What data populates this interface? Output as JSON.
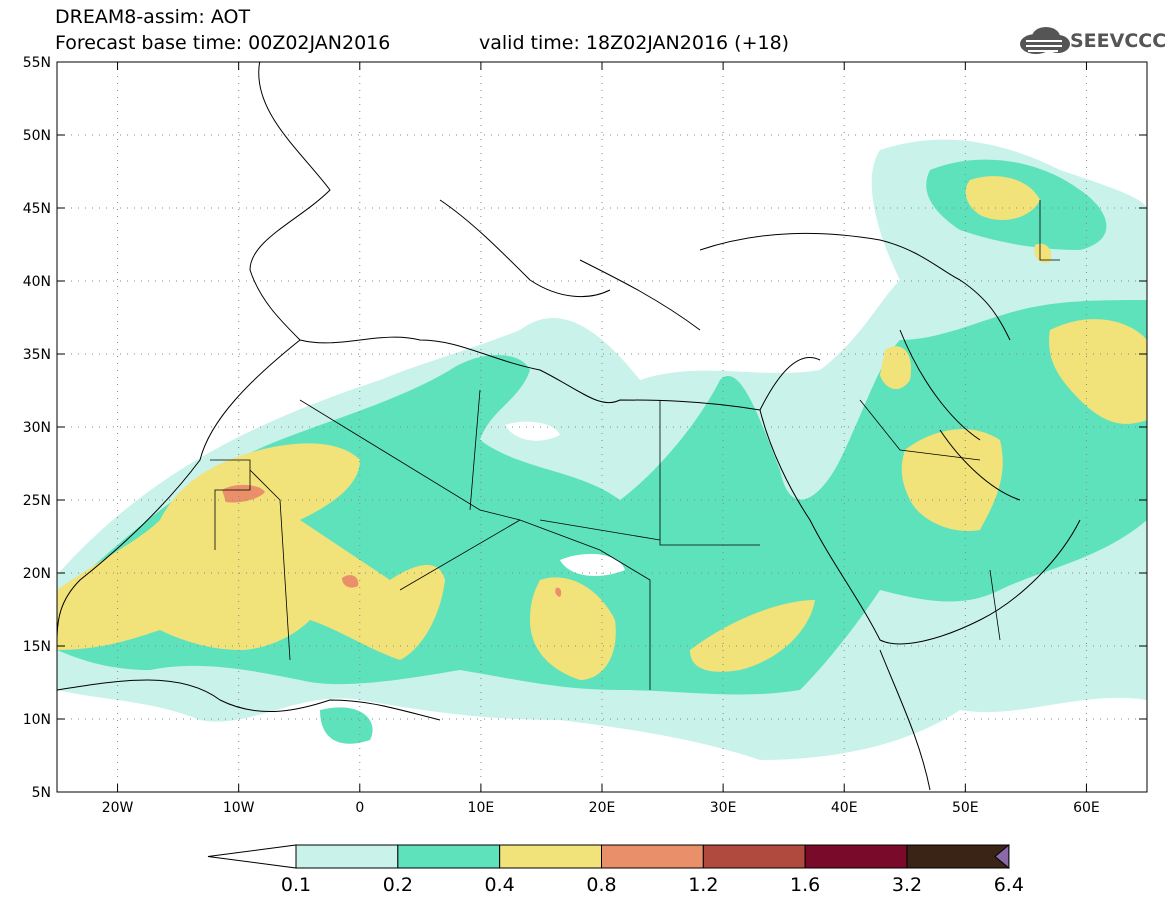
{
  "header": {
    "title": "DREAM8-assim: AOT",
    "base_time": "Forecast base time: 00Z02JAN2016",
    "valid_time": "valid time: 18Z02JAN2016 (+18)"
  },
  "logo": {
    "text": "SEEVCCC",
    "icon": "cloud-logo-icon"
  },
  "map": {
    "lon_range": [
      -25,
      65
    ],
    "lat_range": [
      5,
      55
    ],
    "grid": "dotted",
    "lat_ticks": [
      {
        "value": 55,
        "label": "55N"
      },
      {
        "value": 50,
        "label": "50N"
      },
      {
        "value": 45,
        "label": "45N"
      },
      {
        "value": 40,
        "label": "40N"
      },
      {
        "value": 35,
        "label": "35N"
      },
      {
        "value": 30,
        "label": "30N"
      },
      {
        "value": 25,
        "label": "25N"
      },
      {
        "value": 20,
        "label": "20N"
      },
      {
        "value": 15,
        "label": "15N"
      },
      {
        "value": 10,
        "label": "10N"
      },
      {
        "value": 5,
        "label": "5N"
      }
    ],
    "lon_ticks": [
      {
        "value": -20,
        "label": "20W"
      },
      {
        "value": -10,
        "label": "10W"
      },
      {
        "value": 0,
        "label": "0"
      },
      {
        "value": 10,
        "label": "10E"
      },
      {
        "value": 20,
        "label": "20E"
      },
      {
        "value": 30,
        "label": "30E"
      },
      {
        "value": 40,
        "label": "40E"
      },
      {
        "value": 50,
        "label": "50E"
      },
      {
        "value": 60,
        "label": "60E"
      }
    ]
  },
  "colorbar": {
    "colors": [
      "#c8f2ea",
      "#5ee2bc",
      "#f2e27a",
      "#e9906a",
      "#b04a3e",
      "#7a0a2a",
      "#3a2416",
      "#8a6aa6"
    ],
    "labels": [
      "0.1",
      "0.2",
      "0.4",
      "0.8",
      "1.2",
      "1.6",
      "3.2",
      "6.4"
    ]
  }
}
